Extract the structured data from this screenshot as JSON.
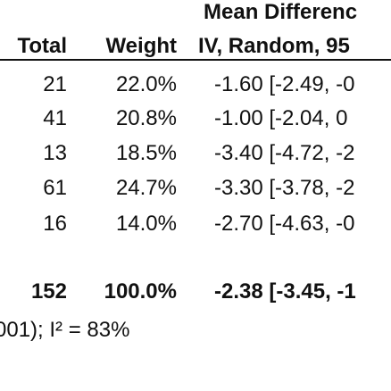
{
  "header": {
    "group_title": "Mean Differenc",
    "columns": [
      "Total",
      "Weight",
      "IV, Random, 95"
    ]
  },
  "table": {
    "rows": [
      [
        "21",
        "22.0%",
        "-1.60 [-2.49, -0"
      ],
      [
        "41",
        "20.8%",
        "-1.00 [-2.04, 0"
      ],
      [
        "13",
        "18.5%",
        "-3.40 [-4.72, -2"
      ],
      [
        "61",
        "24.7%",
        "-3.30 [-3.78, -2"
      ],
      [
        "16",
        "14.0%",
        "-2.70 [-4.63, -0"
      ]
    ],
    "total": [
      "152",
      "100.0%",
      "-2.38 [-3.45, -1"
    ]
  },
  "footer": "001); I² = 83%"
}
